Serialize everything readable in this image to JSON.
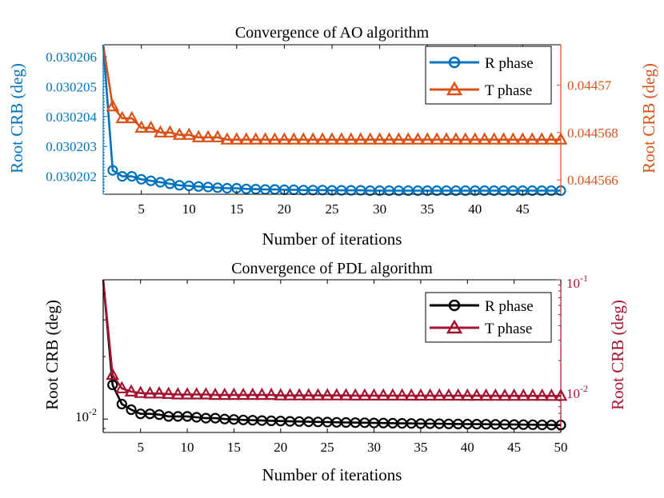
{
  "chart_data": [
    {
      "type": "line",
      "title": "Convergence of AO algorithm",
      "xlabel": "Number of iterations",
      "ylabel_left": "Root CRB (deg)",
      "ylabel_right": "Root CRB (deg)",
      "xlim": [
        1,
        49
      ],
      "xticks": [
        5,
        10,
        15,
        20,
        25,
        30,
        35,
        40,
        45
      ],
      "xtick_labels": [
        "5",
        "10",
        "15",
        "20",
        "25",
        "30",
        "35",
        "40",
        "45"
      ],
      "ylim_left": [
        0.0302014,
        0.0302064
      ],
      "yticks_left": [
        0.030202,
        0.030203,
        0.030204,
        0.030205,
        0.030206
      ],
      "ytick_labels_left": [
        "0.030202",
        "0.030203",
        "0.030204",
        "0.030205",
        "0.030206"
      ],
      "ylim_right": [
        0.0445654,
        0.0445717
      ],
      "yticks_right": [
        0.044566,
        0.044568,
        0.04457
      ],
      "ytick_labels_right": [
        "0.044566",
        "0.044568",
        "0.04457"
      ],
      "legend_position": "top-right",
      "left_color": "#0072BD",
      "right_color": "#D95319",
      "series": [
        {
          "name": "R phase",
          "axis": "left",
          "marker": "circle",
          "color": "#0072BD",
          "x": [
            1,
            2,
            3,
            4,
            5,
            6,
            7,
            8,
            9,
            10,
            11,
            12,
            13,
            14,
            15,
            16,
            17,
            18,
            19,
            20,
            21,
            22,
            23,
            24,
            25,
            26,
            27,
            28,
            29,
            30,
            31,
            32,
            33,
            34,
            35,
            36,
            37,
            38,
            39,
            40,
            41,
            42,
            43,
            44,
            45,
            46,
            47,
            48,
            49
          ],
          "values": [
            0.0302064,
            0.0302022,
            0.030202,
            0.030202,
            0.0302019,
            0.03020185,
            0.0302018,
            0.03020175,
            0.0302017,
            0.03020168,
            0.03020166,
            0.03020164,
            0.03020162,
            0.0302016,
            0.0302016,
            0.03020158,
            0.03020157,
            0.03020156,
            0.03020156,
            0.03020155,
            0.03020155,
            0.03020154,
            0.03020154,
            0.03020154,
            0.03020153,
            0.03020153,
            0.03020153,
            0.03020153,
            0.03020152,
            0.03020152,
            0.03020152,
            0.03020152,
            0.03020152,
            0.03020152,
            0.03020152,
            0.03020152,
            0.03020152,
            0.03020152,
            0.03020152,
            0.03020152,
            0.03020152,
            0.03020152,
            0.03020152,
            0.03020152,
            0.03020152,
            0.03020152,
            0.03020152,
            0.03020152,
            0.03020152
          ]
        },
        {
          "name": "T phase",
          "axis": "right",
          "marker": "triangle",
          "color": "#D95319",
          "x": [
            1,
            2,
            3,
            4,
            5,
            6,
            7,
            8,
            9,
            10,
            11,
            12,
            13,
            14,
            15,
            16,
            17,
            18,
            19,
            20,
            21,
            22,
            23,
            24,
            25,
            26,
            27,
            28,
            29,
            30,
            31,
            32,
            33,
            34,
            35,
            36,
            37,
            38,
            39,
            40,
            41,
            42,
            43,
            44,
            45,
            46,
            47,
            48,
            49
          ],
          "values": [
            0.0445717,
            0.0445691,
            0.0445686,
            0.0445686,
            0.0445682,
            0.0445682,
            0.044568,
            0.044568,
            0.0445679,
            0.0445679,
            0.0445678,
            0.0445678,
            0.0445678,
            0.0445677,
            0.0445677,
            0.0445677,
            0.0445677,
            0.0445677,
            0.0445677,
            0.0445677,
            0.0445677,
            0.0445677,
            0.0445677,
            0.0445677,
            0.0445677,
            0.0445677,
            0.0445677,
            0.0445677,
            0.0445677,
            0.0445677,
            0.0445677,
            0.0445677,
            0.0445677,
            0.0445677,
            0.0445677,
            0.0445677,
            0.0445677,
            0.0445677,
            0.0445677,
            0.0445677,
            0.0445677,
            0.0445677,
            0.0445677,
            0.0445677,
            0.0445677,
            0.0445677,
            0.0445677,
            0.0445677,
            0.0445677
          ]
        }
      ]
    },
    {
      "type": "line",
      "title": "Convergence of PDL algorithm",
      "xlabel": "Number of iterations",
      "ylabel_left": "Root CRB (deg)",
      "ylabel_right": "Root CRB (deg)",
      "xlim": [
        1,
        50
      ],
      "xticks": [
        5,
        10,
        15,
        20,
        25,
        30,
        35,
        40,
        45,
        50
      ],
      "xtick_labels": [
        "5",
        "10",
        "15",
        "20",
        "25",
        "30",
        "35",
        "40",
        "45",
        "50"
      ],
      "yscale_left": "log",
      "ylim_left": [
        0.00862,
        0.0468
      ],
      "yticks_left": [
        0.01
      ],
      "ytick_base_left": "10",
      "ytick_exp_left": "-2",
      "yscale_right": "log",
      "ylim_right": [
        0.00479,
        0.1
      ],
      "yticks_right": [
        0.01,
        0.1
      ],
      "ytick_base_right": "10",
      "ytick_exps_right": [
        "-2",
        "-1"
      ],
      "legend_position": "top-right",
      "left_color": "#000000",
      "right_color": "#A2142F",
      "series": [
        {
          "name": "R phase",
          "axis": "left",
          "marker": "circle",
          "color": "#000000",
          "x": [
            1,
            2,
            3,
            4,
            5,
            6,
            7,
            8,
            9,
            10,
            11,
            12,
            13,
            14,
            15,
            16,
            17,
            18,
            19,
            20,
            21,
            22,
            23,
            24,
            25,
            26,
            27,
            28,
            29,
            30,
            31,
            32,
            33,
            34,
            35,
            36,
            37,
            38,
            39,
            40,
            41,
            42,
            43,
            44,
            45,
            46,
            47,
            48,
            49,
            50
          ],
          "values": [
            0.0468,
            0.0146,
            0.0118,
            0.0111,
            0.0106,
            0.0106,
            0.0105,
            0.0103,
            0.0103,
            0.0103,
            0.0102,
            0.0101,
            0.0101,
            0.01,
            0.00996,
            0.00991,
            0.00987,
            0.00984,
            0.00981,
            0.00978,
            0.00975,
            0.00973,
            0.00971,
            0.00969,
            0.00967,
            0.00965,
            0.00963,
            0.00961,
            0.0096,
            0.00958,
            0.00957,
            0.00955,
            0.00954,
            0.00953,
            0.00951,
            0.0095,
            0.00949,
            0.00948,
            0.00947,
            0.00946,
            0.00945,
            0.00944,
            0.00943,
            0.00942,
            0.00941,
            0.0094,
            0.00939,
            0.00938,
            0.00937,
            0.00936
          ]
        },
        {
          "name": "T phase",
          "axis": "right",
          "marker": "triangle",
          "color": "#A2142F",
          "x": [
            1,
            2,
            3,
            4,
            5,
            6,
            7,
            8,
            9,
            10,
            11,
            12,
            13,
            14,
            15,
            16,
            17,
            18,
            19,
            20,
            21,
            22,
            23,
            24,
            25,
            26,
            27,
            28,
            29,
            30,
            31,
            32,
            33,
            34,
            35,
            36,
            37,
            38,
            39,
            40,
            41,
            42,
            43,
            44,
            45,
            46,
            47,
            48,
            49,
            50
          ],
          "values": [
            0.1,
            0.015,
            0.0115,
            0.0108,
            0.0105,
            0.0104,
            0.0104,
            0.0103,
            0.0102,
            0.0102,
            0.0102,
            0.0102,
            0.0101,
            0.0101,
            0.0101,
            0.0101,
            0.0101,
            0.0101,
            0.0101,
            0.01,
            0.01,
            0.01,
            0.01,
            0.01,
            0.01,
            0.01,
            0.01,
            0.00998,
            0.00998,
            0.00998,
            0.00997,
            0.00997,
            0.00997,
            0.00996,
            0.00996,
            0.00996,
            0.00995,
            0.00995,
            0.00995,
            0.00994,
            0.00994,
            0.00994,
            0.00993,
            0.00993,
            0.00993,
            0.00992,
            0.00992,
            0.00992,
            0.00991,
            0.00991
          ]
        }
      ]
    }
  ]
}
